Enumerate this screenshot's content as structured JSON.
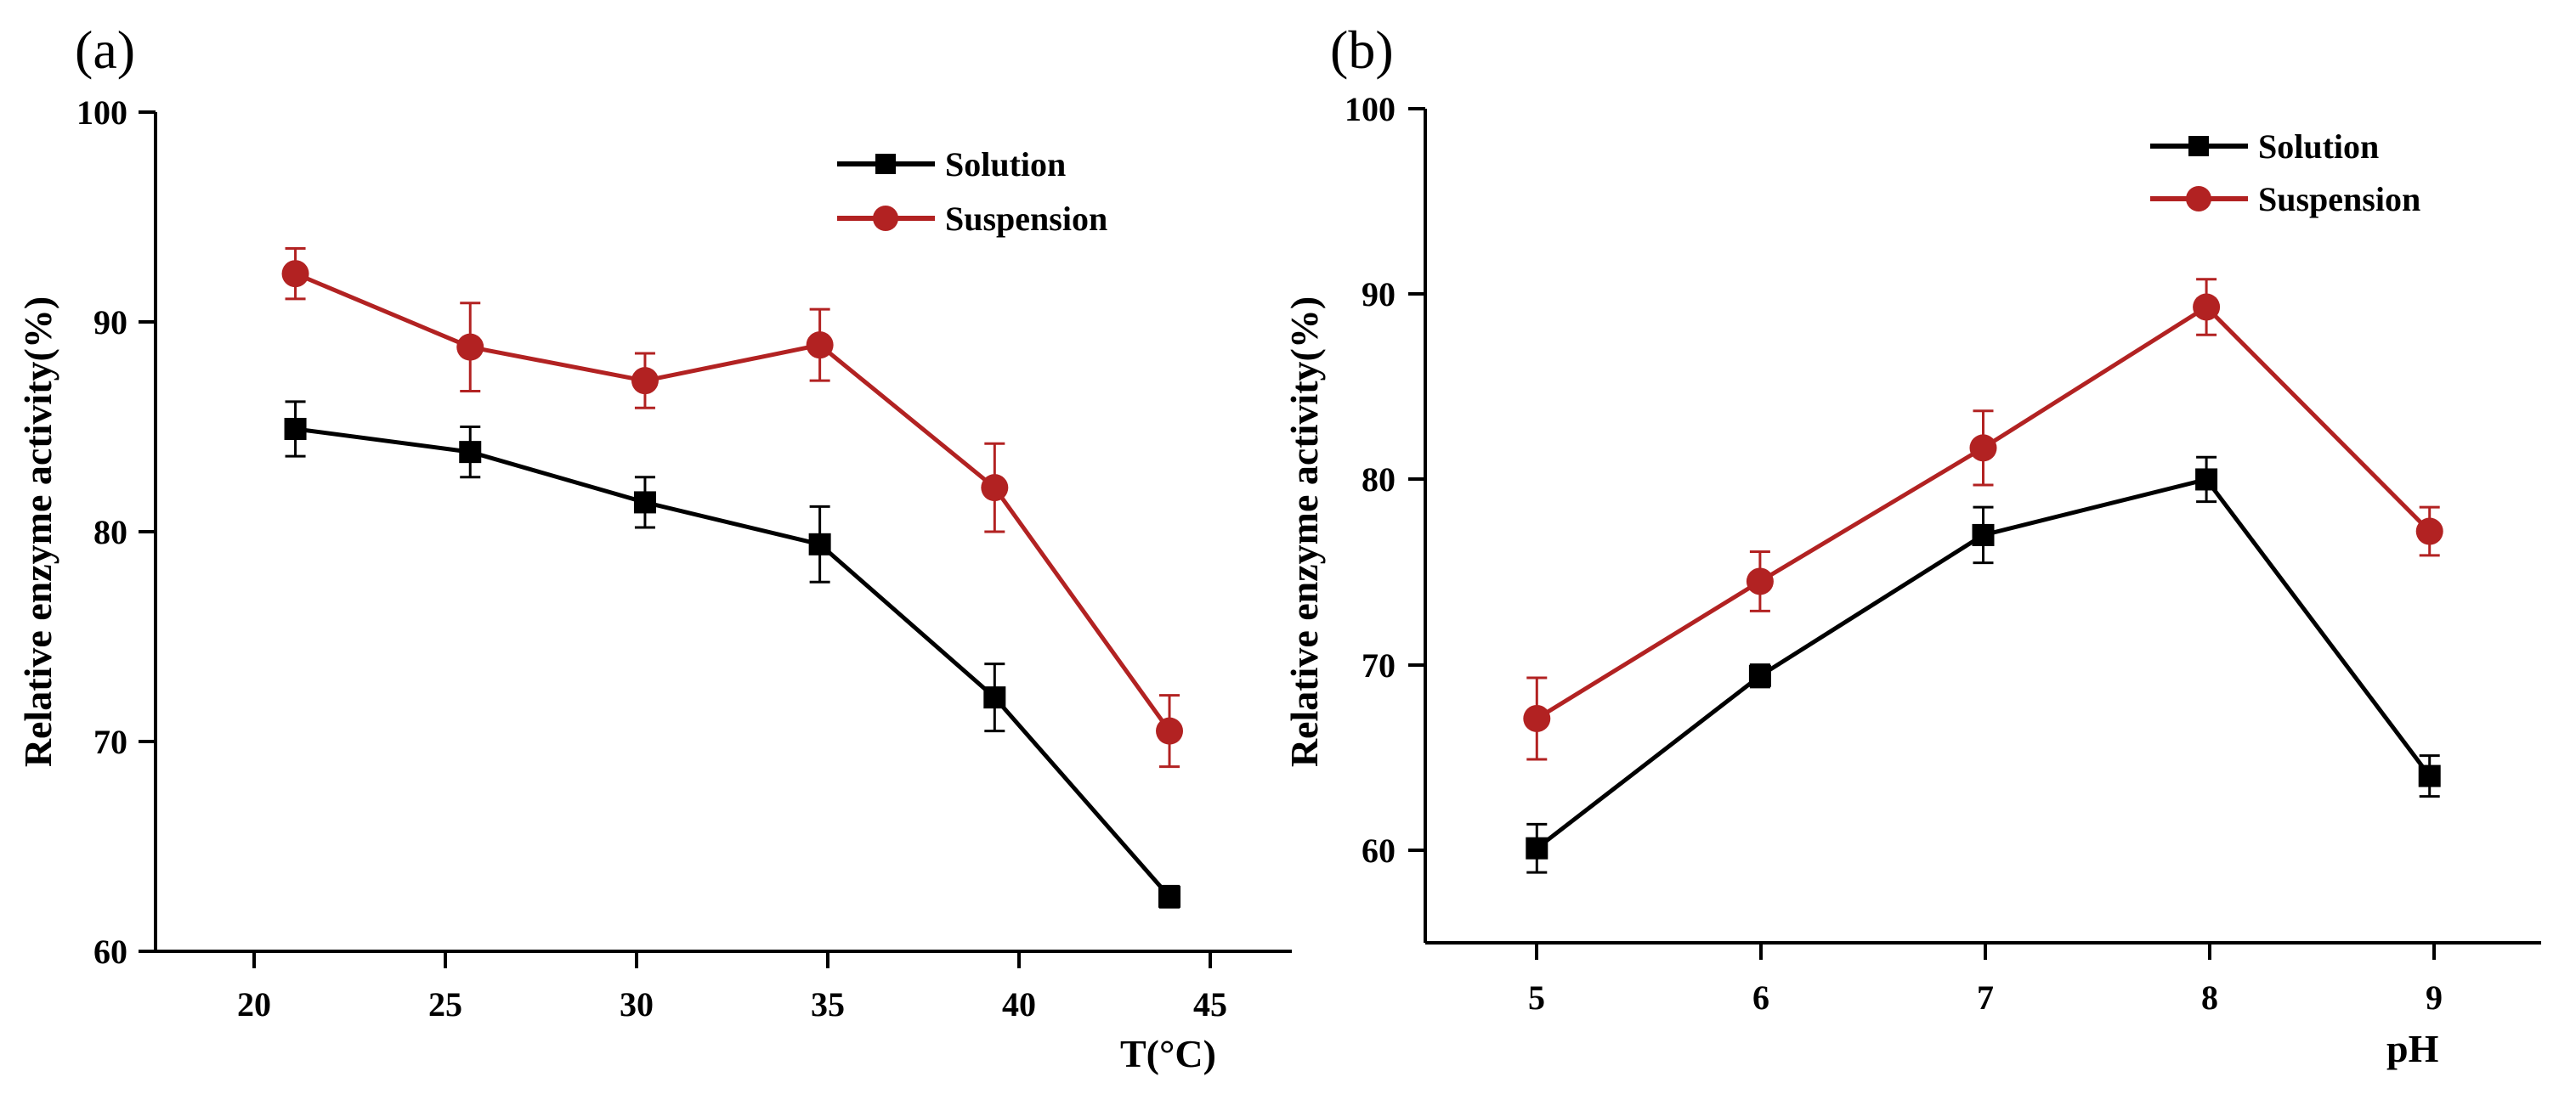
{
  "chart_data": [
    {
      "type": "line",
      "panel_label": "(a)",
      "title": "",
      "xlabel": "T(°C)",
      "ylabel": "Relative enzyme activity(%)",
      "categories": [
        "20",
        "25",
        "30",
        "35",
        "40",
        "45"
      ],
      "x": [
        20,
        25,
        30,
        35,
        40,
        45
      ],
      "xlim": [
        16,
        48.5
      ],
      "ylim": [
        60,
        100
      ],
      "yticks": [
        "60",
        "70",
        "80",
        "90",
        "100"
      ],
      "legend_position": "top-right",
      "series": [
        {
          "name": "Solution",
          "color": "#000000",
          "marker": "square",
          "values": [
            84.9,
            83.8,
            81.4,
            79.4,
            72.1,
            62.6
          ],
          "errors": [
            1.3,
            1.2,
            1.2,
            1.8,
            1.6,
            0.5
          ]
        },
        {
          "name": "Suspension",
          "color": "#b22222",
          "marker": "circle",
          "values": [
            92.3,
            88.8,
            87.2,
            88.9,
            82.1,
            70.5
          ],
          "errors": [
            1.2,
            2.1,
            1.3,
            1.7,
            2.1,
            1.7
          ]
        }
      ]
    },
    {
      "type": "line",
      "panel_label": "(b)",
      "title": "",
      "xlabel": "pH",
      "ylabel": "Relative enzyme activity(%)",
      "categories": [
        "5",
        "6",
        "7",
        "8",
        "9"
      ],
      "x": [
        5,
        6,
        7,
        8,
        9
      ],
      "xlim": [
        4.5,
        9.5
      ],
      "ylim": [
        55,
        100
      ],
      "yticks": [
        "60",
        "70",
        "80",
        "90",
        "100"
      ],
      "legend_position": "top-right",
      "series": [
        {
          "name": "Solution",
          "color": "#000000",
          "marker": "square",
          "values": [
            60.1,
            69.4,
            77.0,
            80.0,
            64.0
          ],
          "errors": [
            1.3,
            0.6,
            1.5,
            1.2,
            1.1
          ]
        },
        {
          "name": "Suspension",
          "color": "#b22222",
          "marker": "circle",
          "values": [
            67.1,
            74.5,
            81.7,
            89.3,
            77.2
          ],
          "errors": [
            2.2,
            1.6,
            2.0,
            1.5,
            1.3
          ]
        }
      ]
    }
  ]
}
